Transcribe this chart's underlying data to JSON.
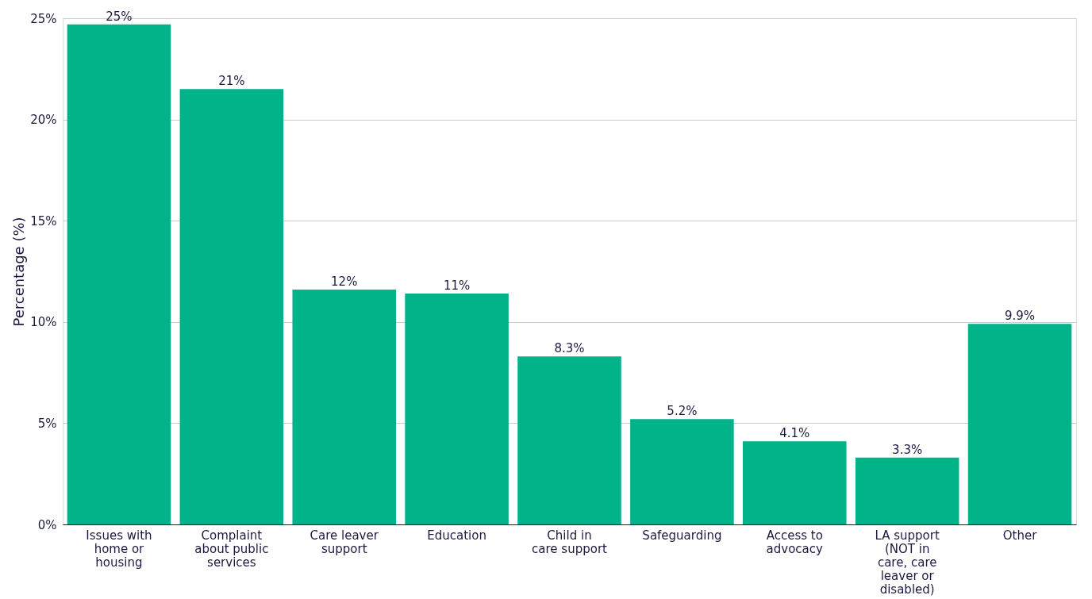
{
  "chart_data": {
    "type": "bar",
    "ylabel": "Percentage (%)",
    "categories": [
      "Issues with home or housing",
      "Complaint about public services",
      "Care leaver support",
      "Education",
      "Child in care support",
      "Safeguarding",
      "Access to advocacy",
      "LA support (NOT in care, care leaver or disabled)",
      "Other"
    ],
    "values": [
      24.7,
      21.5,
      11.6,
      11.4,
      8.3,
      5.2,
      4.1,
      3.3,
      9.9
    ],
    "value_labels": [
      "25%",
      "21%",
      "12%",
      "11%",
      "8.3%",
      "5.2%",
      "4.1%",
      "3.3%",
      "9.9%"
    ],
    "color": "#00b388",
    "ylim": [
      0,
      25
    ],
    "yticks": [
      {
        "value": 0,
        "label": "0%"
      },
      {
        "value": 5,
        "label": "5%"
      },
      {
        "value": 10,
        "label": "10%"
      },
      {
        "value": 15,
        "label": "15%"
      },
      {
        "value": 20,
        "label": "20%"
      },
      {
        "value": 25,
        "label": "25%"
      }
    ],
    "grid": "y"
  }
}
